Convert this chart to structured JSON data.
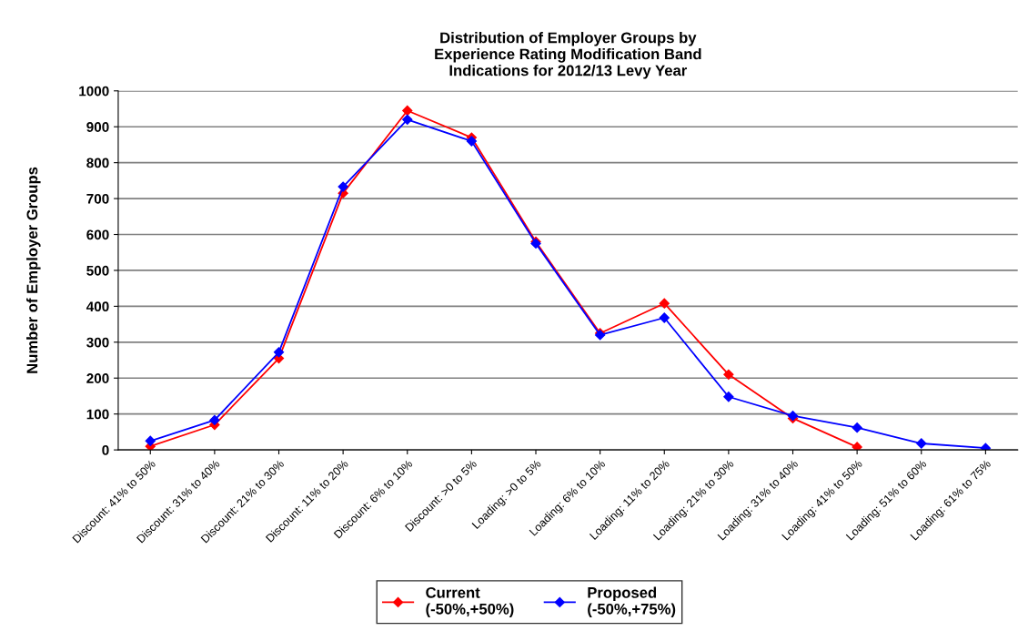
{
  "chart_data": {
    "type": "line",
    "title": "Distribution of Employer Groups by\nExperience Rating Modification Band\nIndications for 2012/13 Levy Year",
    "ylabel": "Number of Employer Groups",
    "categories": [
      "Discount: 41% to 50%",
      "Discount: 31% to 40%",
      "Discount: 21% to 30%",
      "Discount: 11% to 20%",
      "Discount: 6% to 10%",
      "Discount: >0 to 5%",
      "Loading: >0 to 5%",
      "Loading: 6% to 10%",
      "Loading: 11% to 20%",
      "Loading: 21% to 30%",
      "Loading: 31% to 40%",
      "Loading: 41% to 50%",
      "Loading: 51% to 60%",
      "Loading: 61% to 75%"
    ],
    "series": [
      {
        "name": "Current\n(-50%,+50%)",
        "color": "#ff0000",
        "values": [
          10,
          70,
          255,
          715,
          945,
          870,
          580,
          325,
          408,
          210,
          88,
          8,
          null,
          null
        ]
      },
      {
        "name": "Proposed\n(-50%,+75%)",
        "color": "#0000ff",
        "values": [
          25,
          83,
          272,
          733,
          920,
          860,
          575,
          320,
          368,
          148,
          95,
          62,
          18,
          5
        ]
      }
    ],
    "ylim": [
      0,
      1000
    ],
    "yticks": [
      0,
      100,
      200,
      300,
      400,
      500,
      600,
      700,
      800,
      900,
      1000
    ],
    "grid": "y",
    "legend": "bottom",
    "marker": "diamond",
    "line_style": "solid"
  }
}
